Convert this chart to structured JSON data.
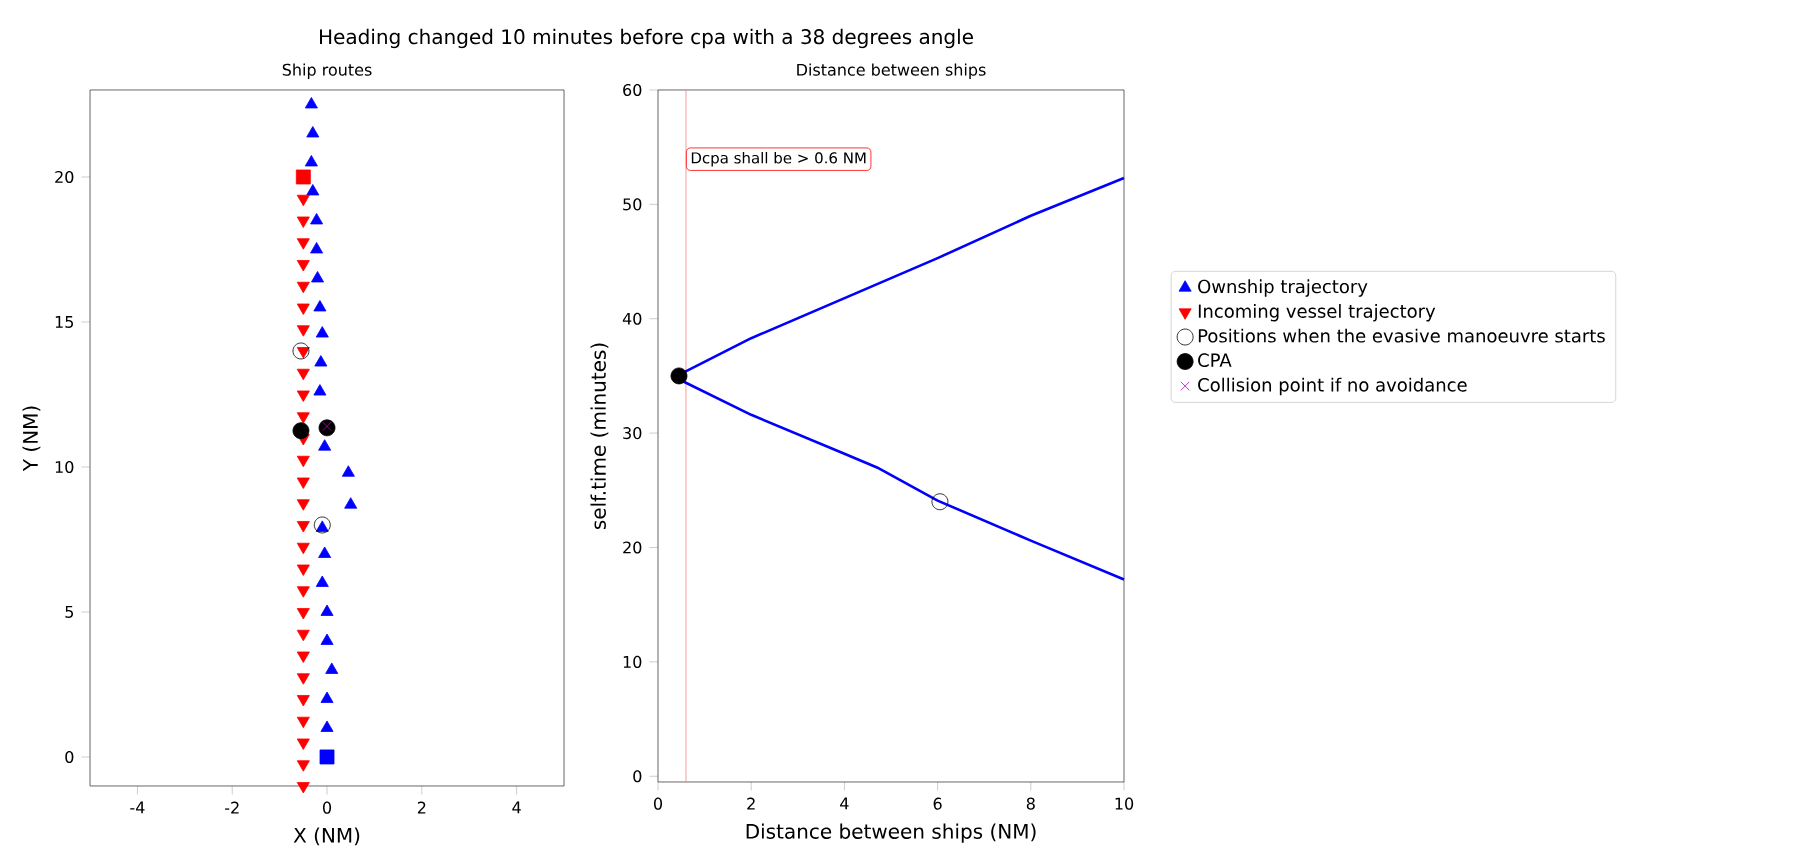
{
  "chart_data": [
    {
      "type": "scatter",
      "title": "Heading changed 10 minutes before cpa with a 38 degrees angle",
      "subtitle": "Ship routes",
      "xlabel": "X (NM)",
      "ylabel": "Y (NM)",
      "xlim": [
        -5,
        5
      ],
      "ylim": [
        -1,
        23
      ],
      "xticks": [
        -4,
        -2,
        0,
        2,
        4
      ],
      "yticks": [
        0,
        5,
        10,
        15,
        20
      ],
      "grid": false,
      "legend": "right",
      "series": [
        {
          "name": "Ownship trajectory",
          "color": "#0000ff",
          "marker": "triangle",
          "x": [
            0,
            0,
            0.1,
            0,
            0,
            -0.1,
            -0.05,
            -0.1,
            0.5,
            0.45,
            -0.05,
            -0.15,
            -0.13,
            -0.1,
            -0.15,
            -0.2,
            -0.22,
            -0.22,
            -0.3,
            -0.33,
            -0.3,
            -0.33
          ],
          "values": [
            1,
            2,
            3,
            4,
            5,
            6,
            7,
            7.9,
            8.7,
            9.8,
            10.7,
            12.6,
            13.6,
            14.6,
            15.5,
            16.5,
            17.5,
            18.5,
            19.5,
            20.5,
            21.5,
            22.5
          ]
        },
        {
          "name": "Incoming vessel trajectory",
          "color": "#ff0000",
          "marker": "triangle_down",
          "x": [
            -0.5,
            -0.5,
            -0.5,
            -0.5,
            -0.5,
            -0.5,
            -0.5,
            -0.5,
            -0.5,
            -0.5,
            -0.5,
            -0.5,
            -0.5,
            -0.5,
            -0.5,
            -0.5,
            -0.5,
            -0.5,
            -0.5,
            -0.5,
            -0.5,
            -0.5,
            -0.5,
            -0.5,
            -0.5,
            -0.5,
            -0.5,
            -0.5
          ],
          "values": [
            19.25,
            18.5,
            17.75,
            17,
            16.25,
            15.5,
            14.75,
            14,
            13.25,
            12.5,
            11.75,
            11,
            10.25,
            9.5,
            8.75,
            8,
            7.25,
            6.5,
            5.75,
            5,
            4.25,
            3.5,
            2.75,
            2,
            1.25,
            0.5,
            -0.25,
            -1
          ]
        },
        {
          "color": "#0000ff",
          "marker": "square",
          "x": [
            0
          ],
          "values": [
            0
          ]
        },
        {
          "color": "#ff0000",
          "marker": "square",
          "x": [
            -0.5
          ],
          "values": [
            20
          ]
        },
        {
          "name": "Positions when the evasive manoeuvre starts",
          "color": "#000000",
          "marker": "circle_open",
          "x": [
            -0.55,
            -0.1
          ],
          "values": [
            14,
            8
          ]
        },
        {
          "name": "CPA",
          "color": "#000000",
          "marker": "circle",
          "x": [
            -0.55,
            0
          ],
          "values": [
            11.25,
            11.35
          ]
        },
        {
          "name": "Collision point if no avoidance",
          "color": "#bf00bf",
          "marker": "cross",
          "x": [
            0
          ],
          "values": [
            11.4
          ]
        }
      ]
    },
    {
      "type": "line",
      "subtitle": "Distance between ships",
      "xlabel": "Distance between ships (NM)",
      "ylabel": "self.time (minutes)",
      "xlim": [
        0,
        10
      ],
      "ylim": [
        -0.5,
        60
      ],
      "xticks": [
        0,
        2,
        4,
        6,
        8,
        10
      ],
      "yticks": [
        0,
        10,
        20,
        30,
        40,
        50,
        60
      ],
      "grid": false,
      "ref_lines": [
        {
          "axis": "x",
          "value": 0.6,
          "label": "Dcpa shall be > 0.6 NM",
          "color": "#f08080"
        }
      ],
      "series": [
        {
          "color": "#0000ff",
          "x": [
            10,
            8,
            6,
            4.7,
            4,
            2,
            0.5,
            0.5,
            2,
            6,
            8,
            10
          ],
          "values": [
            17.2,
            20.6,
            24.1,
            27,
            28.2,
            31.6,
            34.6,
            35.2,
            38.3,
            45.3,
            49,
            52.3
          ]
        },
        {
          "type": "scatter",
          "color": "#000000",
          "marker": "circle_open",
          "x": [
            6.05
          ],
          "values": [
            24
          ]
        },
        {
          "type": "scatter",
          "color": "#000000",
          "marker": "circle",
          "x": [
            0.45
          ],
          "values": [
            35
          ]
        }
      ]
    }
  ]
}
